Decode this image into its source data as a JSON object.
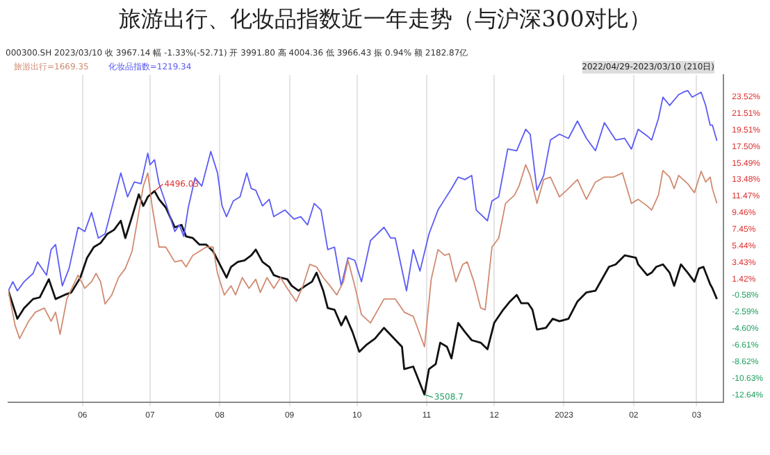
{
  "chart_data": {
    "type": "line",
    "title": "旅游出行、化妆品指数近一年走势（与沪深300对比）",
    "annotations": [
      "000300.SH 2023/03/10 收 3967.14 幅 -1.33%(-52.71) 开 3991.80 高 4004.36 低 3966.43 振 0.94% 额 2182.87亿",
      "2022/04/29-2023/03/10 (210日)",
      {
        "text": "4496.03",
        "x": "2022-07-03",
        "y": 12.1
      },
      {
        "text": "3508.7",
        "x": "2022-10-31",
        "y": -12.6
      }
    ],
    "legend": "top left",
    "grid": "x",
    "xlim": [
      "2022-04-29",
      "2023-03-13"
    ],
    "xticks": [
      {
        "value": "2022-06-01",
        "label": "06"
      },
      {
        "value": "2022-07-01",
        "label": "07"
      },
      {
        "value": "2022-08-01",
        "label": "08"
      },
      {
        "value": "2022-09-01",
        "label": "09"
      },
      {
        "value": "2022-10-01",
        "label": "10"
      },
      {
        "value": "2022-11-01",
        "label": "11"
      },
      {
        "value": "2022-12-01",
        "label": "12"
      },
      {
        "value": "2023-01-01",
        "label": "2023"
      },
      {
        "value": "2023-02-01",
        "label": "02"
      },
      {
        "value": "2023-03-01",
        "label": "03"
      }
    ],
    "ylim": [
      -13.5,
      26.2
    ],
    "yticks": [
      {
        "value": 23.52,
        "label": "23.52%"
      },
      {
        "value": 21.51,
        "label": "21.51%"
      },
      {
        "value": 19.51,
        "label": "19.51%"
      },
      {
        "value": 17.5,
        "label": "17.50%"
      },
      {
        "value": 15.49,
        "label": "15.49%"
      },
      {
        "value": 13.48,
        "label": "13.48%"
      },
      {
        "value": 11.47,
        "label": "11.47%"
      },
      {
        "value": 9.46,
        "label": "9.46%"
      },
      {
        "value": 7.45,
        "label": "7.45%"
      },
      {
        "value": 5.44,
        "label": "5.44%"
      },
      {
        "value": 3.43,
        "label": "3.43%"
      },
      {
        "value": 1.42,
        "label": "1.42%"
      },
      {
        "value": -0.58,
        "label": "-0.58%"
      },
      {
        "value": -2.59,
        "label": "-2.59%"
      },
      {
        "value": -4.6,
        "label": "-4.60%"
      },
      {
        "value": -6.61,
        "label": "-6.61%"
      },
      {
        "value": -8.62,
        "label": "-8.62%"
      },
      {
        "value": -10.63,
        "label": "-10.63%"
      },
      {
        "value": -12.64,
        "label": "-12.64%"
      }
    ],
    "series": [
      {
        "name": "旅游出行=1669.35",
        "color": "#d08a70",
        "x": [
          "2022-04-29",
          "2022-05-02",
          "2022-05-04",
          "2022-05-08",
          "2022-05-11",
          "2022-05-15",
          "2022-05-18",
          "2022-05-20",
          "2022-05-22",
          "2022-05-25",
          "2022-05-30",
          "2022-06-02",
          "2022-06-05",
          "2022-06-07",
          "2022-06-09",
          "2022-06-11",
          "2022-06-14",
          "2022-06-17",
          "2022-06-20",
          "2022-06-23",
          "2022-06-26",
          "2022-06-28",
          "2022-06-30",
          "2022-07-02",
          "2022-07-05",
          "2022-07-08",
          "2022-07-12",
          "2022-07-15",
          "2022-07-17",
          "2022-07-20",
          "2022-07-23",
          "2022-07-26",
          "2022-07-29",
          "2022-07-31",
          "2022-08-03",
          "2022-08-06",
          "2022-08-08",
          "2022-08-11",
          "2022-08-14",
          "2022-08-17",
          "2022-08-19",
          "2022-08-22",
          "2022-08-25",
          "2022-08-28",
          "2022-08-31",
          "2022-09-04",
          "2022-09-07",
          "2022-09-10",
          "2022-09-13",
          "2022-09-16",
          "2022-09-19",
          "2022-09-22",
          "2022-09-25",
          "2022-09-27",
          "2022-09-30",
          "2022-10-03",
          "2022-10-07",
          "2022-10-13",
          "2022-10-18",
          "2022-10-22",
          "2022-10-26",
          "2022-10-31",
          "2022-11-03",
          "2022-11-06",
          "2022-11-09",
          "2022-11-11",
          "2022-11-14",
          "2022-11-17",
          "2022-11-19",
          "2022-11-22",
          "2022-11-25",
          "2022-11-27",
          "2022-11-30",
          "2022-12-03",
          "2022-12-06",
          "2022-12-10",
          "2022-12-12",
          "2022-12-15",
          "2022-12-17",
          "2022-12-20",
          "2022-12-23",
          "2022-12-26",
          "2022-12-30",
          "2023-01-03",
          "2023-01-07",
          "2023-01-11",
          "2023-01-15",
          "2023-01-19",
          "2023-01-23",
          "2023-01-27",
          "2023-01-31",
          "2023-02-03",
          "2023-02-07",
          "2023-02-09",
          "2023-02-12",
          "2023-02-14",
          "2023-02-17",
          "2023-02-19",
          "2023-02-21",
          "2023-02-25",
          "2023-02-28",
          "2023-03-03",
          "2023-03-05",
          "2023-03-07",
          "2023-03-08",
          "2023-03-10"
        ],
        "values": [
          0,
          -4.2,
          -5.8,
          -3.7,
          -2.6,
          -2.1,
          -3.7,
          -2.6,
          -5.3,
          -1,
          1.9,
          0.3,
          1.1,
          2.1,
          1.1,
          -1.6,
          -0.5,
          1.6,
          2.7,
          4.8,
          9.5,
          12.7,
          14.3,
          10.1,
          5.3,
          5.3,
          3.5,
          3.7,
          2.9,
          4.3,
          4.8,
          5.3,
          5.3,
          2.1,
          -0.5,
          0.6,
          -0.5,
          1.6,
          0.3,
          1.4,
          -0.2,
          1.6,
          0.3,
          1.6,
          0.3,
          -1.3,
          0.6,
          3.2,
          2.9,
          1.6,
          0.6,
          -0.5,
          1.1,
          3.7,
          0.6,
          -2.9,
          -3.9,
          -1,
          -1,
          -2.6,
          -3.1,
          -6.8,
          1.4,
          5,
          4.3,
          4.5,
          1.1,
          3.2,
          3.5,
          1.1,
          -2.1,
          -2.3,
          5.3,
          6.4,
          10.6,
          11.6,
          12.7,
          15.3,
          14,
          10.6,
          13.5,
          13.8,
          11.4,
          12.4,
          13.5,
          11.1,
          13.2,
          13.8,
          13.8,
          14.3,
          10.6,
          11.1,
          10.3,
          9.8,
          11.6,
          14.6,
          13.8,
          12.4,
          14,
          13,
          11.9,
          14.5,
          13.2,
          13.8,
          12.4,
          10.6
        ]
      },
      {
        "name": "化妆品指数=1219.34",
        "color": "#5a5af5",
        "x": [
          "2022-04-29",
          "2022-05-01",
          "2022-05-03",
          "2022-05-06",
          "2022-05-10",
          "2022-05-12",
          "2022-05-16",
          "2022-05-18",
          "2022-05-20",
          "2022-05-23",
          "2022-05-26",
          "2022-05-30",
          "2022-06-02",
          "2022-06-05",
          "2022-06-08",
          "2022-06-11",
          "2022-06-15",
          "2022-06-18",
          "2022-06-21",
          "2022-06-24",
          "2022-06-27",
          "2022-06-30",
          "2022-07-01",
          "2022-07-03",
          "2022-07-05",
          "2022-07-08",
          "2022-07-12",
          "2022-07-14",
          "2022-07-16",
          "2022-07-18",
          "2022-07-21",
          "2022-07-24",
          "2022-07-28",
          "2022-07-31",
          "2022-08-02",
          "2022-08-04",
          "2022-08-07",
          "2022-08-10",
          "2022-08-13",
          "2022-08-15",
          "2022-08-17",
          "2022-08-20",
          "2022-08-23",
          "2022-08-25",
          "2022-08-30",
          "2022-09-03",
          "2022-09-06",
          "2022-09-09",
          "2022-09-12",
          "2022-09-15",
          "2022-09-18",
          "2022-09-21",
          "2022-09-24",
          "2022-09-27",
          "2022-09-30",
          "2022-10-03",
          "2022-10-07",
          "2022-10-13",
          "2022-10-16",
          "2022-10-18",
          "2022-10-23",
          "2022-10-26",
          "2022-10-29",
          "2022-11-02",
          "2022-11-06",
          "2022-11-09",
          "2022-11-12",
          "2022-11-15",
          "2022-11-18",
          "2022-11-21",
          "2022-11-23",
          "2022-11-28",
          "2022-11-30",
          "2022-12-03",
          "2022-12-07",
          "2022-12-11",
          "2022-12-15",
          "2022-12-17",
          "2022-12-20",
          "2022-12-23",
          "2022-12-26",
          "2022-12-30",
          "2023-01-03",
          "2023-01-07",
          "2023-01-11",
          "2023-01-15",
          "2023-01-19",
          "2023-01-24",
          "2023-01-28",
          "2023-01-31",
          "2023-02-03",
          "2023-02-07",
          "2023-02-09",
          "2023-02-12",
          "2023-02-14",
          "2023-02-17",
          "2023-02-21",
          "2023-02-23",
          "2023-02-25",
          "2023-02-27",
          "2023-03-03",
          "2023-03-05",
          "2023-03-07",
          "2023-03-08",
          "2023-03-10"
        ],
        "values": [
          0,
          1.1,
          0,
          1.1,
          2.1,
          3.5,
          1.9,
          5,
          5.6,
          0.6,
          2.7,
          7.7,
          7.2,
          9.5,
          6.4,
          6.9,
          11.1,
          14.3,
          11.4,
          13.2,
          13,
          16.7,
          15.3,
          15.9,
          13,
          10.6,
          7.2,
          8,
          6.6,
          10.1,
          13.7,
          12.7,
          16.9,
          14.3,
          10.3,
          9,
          10.9,
          11.4,
          14.3,
          12.4,
          12.2,
          10.3,
          11.1,
          9,
          9.8,
          8.7,
          9,
          8,
          10.6,
          9.8,
          5,
          5.3,
          0.6,
          4,
          3.7,
          1.1,
          6.1,
          7.7,
          6.4,
          6.4,
          0,
          5,
          2.4,
          6.9,
          9.8,
          11.1,
          12.4,
          13.8,
          13.5,
          14,
          9.8,
          8.5,
          10.9,
          11.4,
          17.2,
          17,
          19.6,
          19,
          12.2,
          14,
          18.3,
          19,
          18.5,
          20.6,
          18.5,
          17,
          20.4,
          18.3,
          18.5,
          17.2,
          19.6,
          18.8,
          18.3,
          20.9,
          23.5,
          22.5,
          23.8,
          24.1,
          24.3,
          23.5,
          24.1,
          22.5,
          20.1,
          20.1,
          18.2
        ]
      },
      {
        "color": "#111111",
        "x": [
          "2022-04-29",
          "2022-05-03",
          "2022-05-06",
          "2022-05-10",
          "2022-05-13",
          "2022-05-17",
          "2022-05-20",
          "2022-05-24",
          "2022-05-27",
          "2022-05-31",
          "2022-06-03",
          "2022-06-06",
          "2022-06-09",
          "2022-06-12",
          "2022-06-15",
          "2022-06-18",
          "2022-06-20",
          "2022-06-23",
          "2022-06-26",
          "2022-06-28",
          "2022-06-30",
          "2022-07-03",
          "2022-07-05",
          "2022-07-08",
          "2022-07-12",
          "2022-07-15",
          "2022-07-17",
          "2022-07-20",
          "2022-07-23",
          "2022-07-26",
          "2022-07-29",
          "2022-08-01",
          "2022-08-04",
          "2022-08-06",
          "2022-08-09",
          "2022-08-12",
          "2022-08-15",
          "2022-08-17",
          "2022-08-20",
          "2022-08-23",
          "2022-08-25",
          "2022-08-28",
          "2022-08-31",
          "2022-09-02",
          "2022-09-05",
          "2022-09-08",
          "2022-09-11",
          "2022-09-13",
          "2022-09-16",
          "2022-09-18",
          "2022-09-21",
          "2022-09-24",
          "2022-09-26",
          "2022-09-29",
          "2022-10-02",
          "2022-10-05",
          "2022-10-09",
          "2022-10-13",
          "2022-10-21",
          "2022-10-22",
          "2022-10-26",
          "2022-10-31",
          "2022-11-02",
          "2022-11-05",
          "2022-11-07",
          "2022-11-10",
          "2022-11-12",
          "2022-11-15",
          "2022-11-18",
          "2022-11-21",
          "2022-11-25",
          "2022-11-28",
          "2022-12-01",
          "2022-12-05",
          "2022-12-08",
          "2022-12-11",
          "2022-12-13",
          "2022-12-16",
          "2022-12-18",
          "2022-12-20",
          "2022-12-24",
          "2022-12-27",
          "2022-12-30",
          "2023-01-03",
          "2023-01-07",
          "2023-01-11",
          "2023-01-15",
          "2023-01-21",
          "2023-01-24",
          "2023-01-28",
          "2023-02-02",
          "2023-02-03",
          "2023-02-07",
          "2023-02-09",
          "2023-02-11",
          "2023-02-14",
          "2023-02-17",
          "2023-02-19",
          "2023-02-22",
          "2023-02-25",
          "2023-02-28",
          "2023-03-02",
          "2023-03-04",
          "2023-03-07",
          "2023-03-08",
          "2023-03-10"
        ],
        "values": [
          0,
          -3.4,
          -2.1,
          -1,
          -0.8,
          1.4,
          -1,
          -0.5,
          -0.2,
          1.6,
          4,
          5.3,
          5.8,
          6.9,
          7.4,
          8.5,
          6.4,
          9,
          11.7,
          10.3,
          11.4,
          12.1,
          11.1,
          10.1,
          7.7,
          8,
          6.6,
          6.4,
          5.6,
          5.6,
          4.8,
          3.2,
          1.6,
          2.9,
          3.5,
          3.7,
          4.3,
          5,
          3.5,
          2.9,
          1.9,
          1.6,
          1.4,
          0.6,
          0,
          0.6,
          1.1,
          2.2,
          0,
          -2.1,
          -2.3,
          -4.2,
          -3.1,
          -5,
          -7.4,
          -6.6,
          -5.8,
          -4.5,
          -6.8,
          -9.5,
          -9.2,
          -12.6,
          -9.5,
          -8.9,
          -6.3,
          -6.8,
          -8.2,
          -3.9,
          -5,
          -6,
          -6.3,
          -7.1,
          -3.9,
          -2.3,
          -1.3,
          -0.5,
          -1.5,
          -1.5,
          -2.3,
          -4.7,
          -4.5,
          -3.4,
          -3.7,
          -3.4,
          -1.3,
          -0.2,
          0,
          2.9,
          3.2,
          4.3,
          4,
          3.2,
          1.9,
          2.2,
          2.9,
          3.2,
          2.2,
          0.6,
          3.2,
          2.2,
          1.1,
          2.7,
          2.9,
          0.8,
          0.3,
          -1
        ]
      }
    ]
  }
}
